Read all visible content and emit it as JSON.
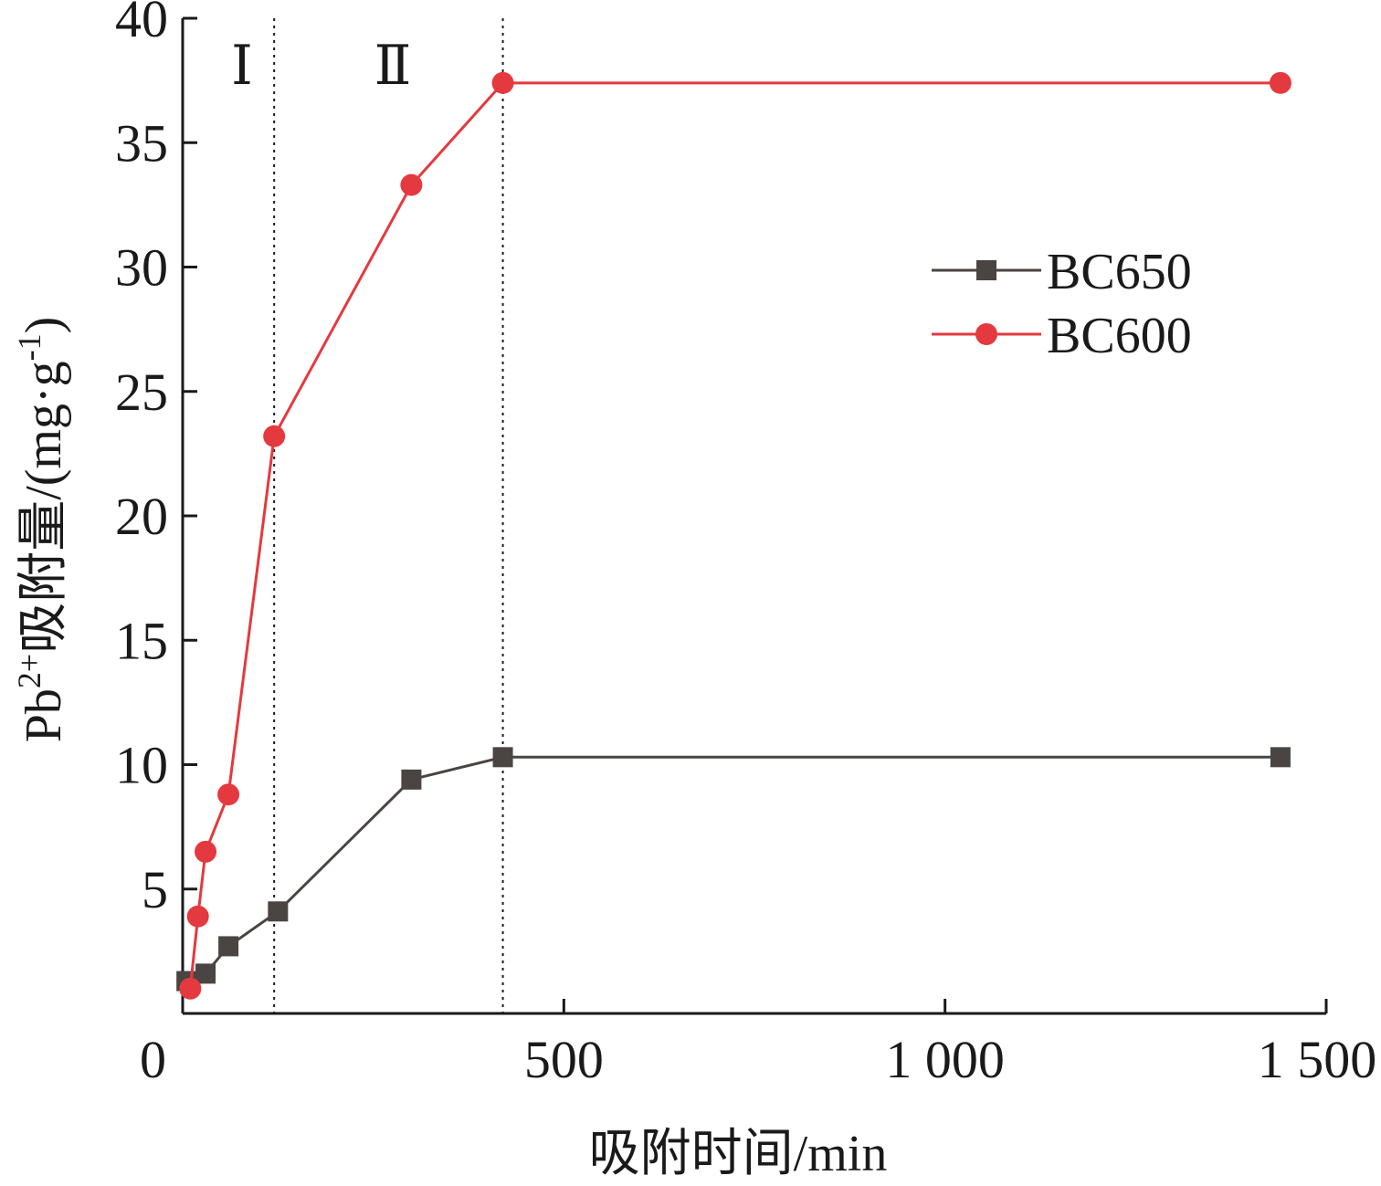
{
  "chart_data": {
    "type": "line",
    "xlabel": "吸附时间/min",
    "ylabel": {
      "prefix": "Pb",
      "sup1": "2+",
      "middle": "吸附量/(mg·g",
      "sup2": "-1",
      "suffix": ")"
    },
    "xlim": [
      0,
      1500
    ],
    "ylim": [
      0,
      40
    ],
    "x_ticks": [
      {
        "value": 0,
        "label": "0"
      },
      {
        "value": 500,
        "label": "500"
      },
      {
        "value": 1000,
        "label": "1 000"
      },
      {
        "value": 1500,
        "label": "1 500"
      }
    ],
    "y_ticks": [
      {
        "value": 5,
        "label": "5"
      },
      {
        "value": 10,
        "label": "10"
      },
      {
        "value": 15,
        "label": "15"
      },
      {
        "value": 20,
        "label": "20"
      },
      {
        "value": 25,
        "label": "25"
      },
      {
        "value": 30,
        "label": "30"
      },
      {
        "value": 35,
        "label": "35"
      },
      {
        "value": 40,
        "label": "40"
      }
    ],
    "grid": false,
    "legend_position": "top-right",
    "regions": [
      {
        "label": "Ⅰ",
        "from": 0,
        "to": 120
      },
      {
        "label": "Ⅱ",
        "from": 120,
        "to": 420
      }
    ],
    "dividers": [
      120,
      420
    ],
    "series": [
      {
        "name": "BC650",
        "color": "#4a4543",
        "marker": "square",
        "x": [
          5,
          10,
          30,
          60,
          125,
          300,
          420,
          1440
        ],
        "y": [
          1.3,
          1.2,
          1.6,
          2.7,
          4.1,
          9.4,
          10.3,
          10.3
        ]
      },
      {
        "name": "BC600",
        "color": "#e4393f",
        "marker": "circle",
        "x": [
          10,
          20,
          30,
          60,
          120,
          300,
          420,
          1440
        ],
        "y": [
          1.0,
          3.9,
          6.5,
          8.8,
          23.2,
          33.3,
          37.4,
          37.4
        ]
      }
    ]
  }
}
